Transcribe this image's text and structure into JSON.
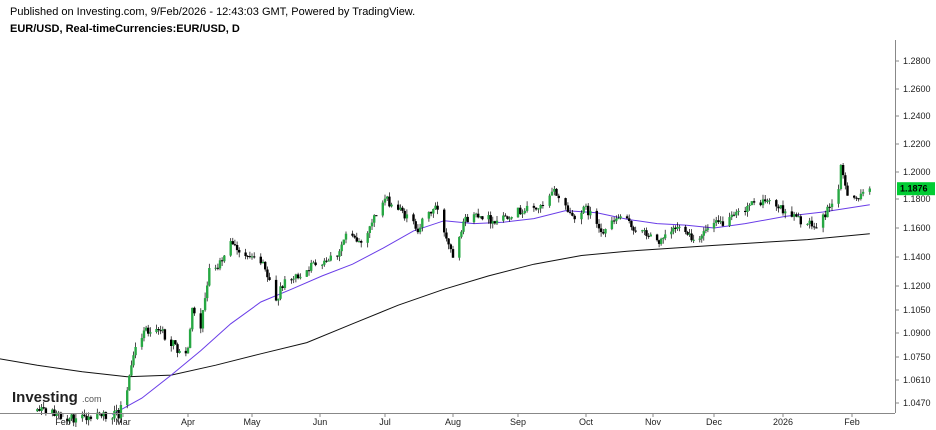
{
  "header": {
    "published": "Published on Investing.com, 9/Feb/2026 - 12:43:03 GMT, Powered by TradingView.",
    "symbol": "EUR/USD, Real-timeCurrencies:EUR/USD, D"
  },
  "logo": {
    "brand": "Investing",
    "suffix": ".com"
  },
  "colors": {
    "up": "#27a843",
    "down": "#000000",
    "ma_short": "#6a3de8",
    "ma_long": "#111111",
    "last_price_bg": "#00cc33",
    "axis": "#888888"
  },
  "chart_data": {
    "type": "candlestick",
    "y_ticks": [
      "1.2800",
      "1.2600",
      "1.2400",
      "1.2200",
      "1.2000",
      "1.1800",
      "1.1600",
      "1.1400",
      "1.1200",
      "1.1050",
      "1.0900",
      "1.0750",
      "1.0610",
      "1.0470"
    ],
    "x_labels": [
      "Feb",
      "Mar",
      "Apr",
      "May",
      "Jun",
      "Jul",
      "Aug",
      "Sep",
      "Oct",
      "Nov",
      "Dec",
      "2026",
      "Feb"
    ],
    "last_price": "1.1876",
    "anchors": [
      [
        "2025-01-20",
        1.042
      ],
      [
        "2025-02-05",
        1.038
      ],
      [
        "2025-02-27",
        1.04
      ],
      [
        "2025-03-04",
        1.062
      ],
      [
        "2025-03-06",
        1.078
      ],
      [
        "2025-03-11",
        1.091
      ],
      [
        "2025-03-18",
        1.093
      ],
      [
        "2025-03-27",
        1.08
      ],
      [
        "2025-04-01",
        1.08
      ],
      [
        "2025-04-03",
        1.105
      ],
      [
        "2025-04-07",
        1.095
      ],
      [
        "2025-04-11",
        1.13
      ],
      [
        "2025-04-18",
        1.138
      ],
      [
        "2025-04-21",
        1.15
      ],
      [
        "2025-04-28",
        1.142
      ],
      [
        "2025-05-06",
        1.134
      ],
      [
        "2025-05-12",
        1.11
      ],
      [
        "2025-05-14",
        1.12
      ],
      [
        "2025-05-20",
        1.125
      ],
      [
        "2025-05-29",
        1.135
      ],
      [
        "2025-06-09",
        1.142
      ],
      [
        "2025-06-13",
        1.155
      ],
      [
        "2025-06-20",
        1.15
      ],
      [
        "2025-06-27",
        1.17
      ],
      [
        "2025-07-01",
        1.18
      ],
      [
        "2025-07-08",
        1.172
      ],
      [
        "2025-07-16",
        1.16
      ],
      [
        "2025-07-24",
        1.175
      ],
      [
        "2025-07-28",
        1.158
      ],
      [
        "2025-08-01",
        1.142
      ],
      [
        "2025-08-06",
        1.165
      ],
      [
        "2025-08-13",
        1.17
      ],
      [
        "2025-08-20",
        1.165
      ],
      [
        "2025-08-29",
        1.17
      ],
      [
        "2025-09-05",
        1.173
      ],
      [
        "2025-09-12",
        1.174
      ],
      [
        "2025-09-17",
        1.186
      ],
      [
        "2025-09-25",
        1.168
      ],
      [
        "2025-10-01",
        1.173
      ],
      [
        "2025-10-09",
        1.158
      ],
      [
        "2025-10-17",
        1.168
      ],
      [
        "2025-10-23",
        1.16
      ],
      [
        "2025-11-05",
        1.15
      ],
      [
        "2025-11-12",
        1.16
      ],
      [
        "2025-11-17",
        1.16
      ],
      [
        "2025-11-21",
        1.152
      ],
      [
        "2025-12-01",
        1.162
      ],
      [
        "2025-12-08",
        1.165
      ],
      [
        "2025-12-16",
        1.175
      ],
      [
        "2025-12-24",
        1.179
      ],
      [
        "2026-01-02",
        1.172
      ],
      [
        "2026-01-09",
        1.165
      ],
      [
        "2026-01-16",
        1.16
      ],
      [
        "2026-01-20",
        1.17
      ],
      [
        "2026-01-23",
        1.178
      ],
      [
        "2026-01-26",
        1.187
      ],
      [
        "2026-01-27",
        1.202
      ],
      [
        "2026-01-30",
        1.185
      ],
      [
        "2026-02-04",
        1.18
      ],
      [
        "2026-02-09",
        1.1876
      ]
    ],
    "ma_short": [
      [
        "2025-02-24",
        1.04
      ],
      [
        "2025-03-10",
        1.05
      ],
      [
        "2025-03-24",
        1.064
      ],
      [
        "2025-04-07",
        1.079
      ],
      [
        "2025-04-21",
        1.096
      ],
      [
        "2025-05-05",
        1.11
      ],
      [
        "2025-05-19",
        1.118
      ],
      [
        "2025-06-02",
        1.127
      ],
      [
        "2025-06-16",
        1.135
      ],
      [
        "2025-06-30",
        1.146
      ],
      [
        "2025-07-14",
        1.158
      ],
      [
        "2025-07-28",
        1.165
      ],
      [
        "2025-08-11",
        1.163
      ],
      [
        "2025-08-25",
        1.164
      ],
      [
        "2025-09-08",
        1.1665
      ],
      [
        "2025-09-22",
        1.172
      ],
      [
        "2025-10-06",
        1.1705
      ],
      [
        "2025-10-20",
        1.166
      ],
      [
        "2025-11-03",
        1.163
      ],
      [
        "2025-11-17",
        1.162
      ],
      [
        "2025-12-01",
        1.16
      ],
      [
        "2025-12-15",
        1.163
      ],
      [
        "2026-01-02",
        1.168
      ],
      [
        "2026-01-19",
        1.171
      ],
      [
        "2026-02-09",
        1.176
      ]
    ],
    "ma_long": [
      [
        "2025-01-02",
        1.074
      ],
      [
        "2025-01-20",
        1.07
      ],
      [
        "2025-02-10",
        1.066
      ],
      [
        "2025-03-03",
        1.063
      ],
      [
        "2025-03-24",
        1.064
      ],
      [
        "2025-04-14",
        1.07
      ],
      [
        "2025-05-05",
        1.077
      ],
      [
        "2025-05-26",
        1.084
      ],
      [
        "2025-06-16",
        1.096
      ],
      [
        "2025-07-07",
        1.108
      ],
      [
        "2025-07-28",
        1.118
      ],
      [
        "2025-08-18",
        1.127
      ],
      [
        "2025-09-08",
        1.135
      ],
      [
        "2025-09-29",
        1.141
      ],
      [
        "2025-10-20",
        1.144
      ],
      [
        "2025-11-10",
        1.146
      ],
      [
        "2025-12-01",
        1.148
      ],
      [
        "2025-12-22",
        1.15
      ],
      [
        "2026-01-12",
        1.152
      ],
      [
        "2026-02-09",
        1.156
      ]
    ]
  }
}
